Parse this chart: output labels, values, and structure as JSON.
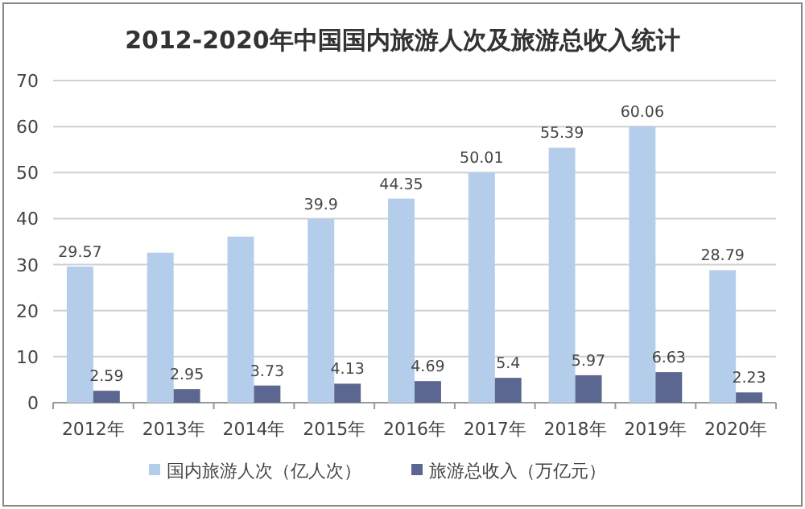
{
  "chart_data": {
    "type": "bar",
    "title": "2012-2020年中国国内旅游人次及旅游总收入统计",
    "categories": [
      "2012年",
      "2013年",
      "2014年",
      "2015年",
      "2016年",
      "2017年",
      "2018年",
      "2019年",
      "2020年"
    ],
    "series": [
      {
        "name": "国内旅游人次（亿人次）",
        "color": "#b4cdea",
        "values": [
          29.57,
          32.6,
          36.1,
          39.9,
          44.35,
          50.01,
          55.39,
          60.06,
          28.79
        ],
        "value_labels": [
          "29.57",
          null,
          null,
          "39.9",
          "44.35",
          "50.01",
          "55.39",
          "60.06",
          "28.79"
        ]
      },
      {
        "name": "旅游总收入（万亿元）",
        "color": "#5b6790",
        "values": [
          2.59,
          2.95,
          3.73,
          4.13,
          4.69,
          5.4,
          5.97,
          6.63,
          2.23
        ],
        "value_labels": [
          "2.59",
          "2.95",
          "3.73",
          "4.13",
          "4.69",
          "5.4",
          "5.97",
          "6.63",
          "2.23"
        ]
      }
    ],
    "ylim": [
      0,
      70
    ],
    "yticks": [
      0,
      10,
      20,
      30,
      40,
      50,
      60,
      70
    ],
    "grid": "y",
    "legend": "bottom"
  }
}
